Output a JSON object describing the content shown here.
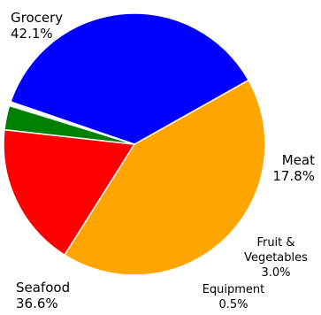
{
  "chart_data": {
    "type": "pie",
    "title": "",
    "slices": [
      {
        "label": "Grocery",
        "value": 42.1,
        "value_label": "42.1%",
        "color": "#FFA500"
      },
      {
        "label": "Meat",
        "value": 17.8,
        "value_label": "17.8%",
        "color": "#FF0000"
      },
      {
        "label": "Fruit & Vegetables",
        "label_lines": [
          "Fruit &",
          "Vegetables"
        ],
        "value": 3.0,
        "value_label": "3.0%",
        "color": "#008000"
      },
      {
        "label": "Equipment",
        "value": 0.5,
        "value_label": "0.5%",
        "color": "#FFFFFF"
      },
      {
        "label": "Seafood",
        "value": 36.6,
        "value_label": "36.6%",
        "color": "#0000FF"
      }
    ],
    "slice_border_color": "#FFFFFF",
    "legend": "none"
  }
}
